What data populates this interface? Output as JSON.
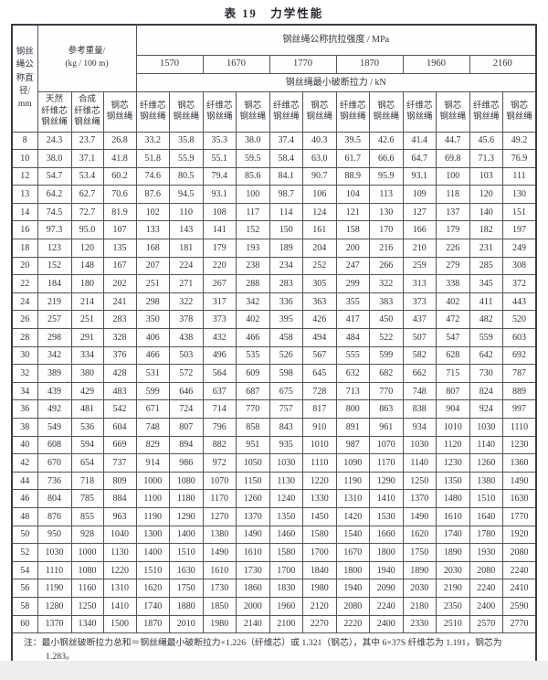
{
  "title": "表 19　力学性能",
  "table": {
    "diameter_header": "钢丝\n绳公\n称直\n径/\nmm",
    "weight_header": "参考重量/\n(kg / 100 m)",
    "strength_header": "钢丝绳公称抗拉强度 / MPa",
    "breaking_header": "钢丝绳最小破断拉力 / kN",
    "grades": [
      "1570",
      "1670",
      "1770",
      "1870",
      "1960",
      "2160"
    ],
    "weight_subheaders": [
      "天然\n纤维芯\n钢丝绳",
      "合成\n纤维芯\n钢丝绳",
      "钢芯\n钢丝绳"
    ],
    "fiber_core_label": "纤维芯\n钢丝绳",
    "steel_core_label": "钢芯\n钢丝绳",
    "rows": [
      [
        "8",
        "24.3",
        "23.7",
        "26.8",
        "33.2",
        "35.8",
        "35.3",
        "38.0",
        "37.4",
        "40.3",
        "39.5",
        "42.6",
        "41.4",
        "44.7",
        "45.6",
        "49.2"
      ],
      [
        "10",
        "38.0",
        "37.1",
        "41.8",
        "51.8",
        "55.9",
        "55.1",
        "59.5",
        "58.4",
        "63.0",
        "61.7",
        "66.6",
        "64.7",
        "69.8",
        "71.3",
        "76.9"
      ],
      [
        "12",
        "54.7",
        "53.4",
        "60.2",
        "74.6",
        "80.5",
        "79.4",
        "85.6",
        "84.1",
        "90.7",
        "88.9",
        "95.9",
        "93.1",
        "100",
        "103",
        "111"
      ],
      [
        "13",
        "64.2",
        "62.7",
        "70.6",
        "87.6",
        "94.5",
        "93.1",
        "100",
        "98.7",
        "106",
        "104",
        "113",
        "109",
        "118",
        "120",
        "130"
      ],
      [
        "14",
        "74.5",
        "72.7",
        "81.9",
        "102",
        "110",
        "108",
        "117",
        "114",
        "124",
        "121",
        "130",
        "127",
        "137",
        "140",
        "151"
      ],
      [
        "16",
        "97.3",
        "95.0",
        "107",
        "133",
        "143",
        "141",
        "152",
        "150",
        "161",
        "158",
        "170",
        "166",
        "179",
        "182",
        "197"
      ],
      [
        "18",
        "123",
        "120",
        "135",
        "168",
        "181",
        "179",
        "193",
        "189",
        "204",
        "200",
        "216",
        "210",
        "226",
        "231",
        "249"
      ],
      [
        "20",
        "152",
        "148",
        "167",
        "207",
        "224",
        "220",
        "238",
        "234",
        "252",
        "247",
        "266",
        "259",
        "279",
        "285",
        "308"
      ],
      [
        "22",
        "184",
        "180",
        "202",
        "251",
        "271",
        "267",
        "288",
        "283",
        "305",
        "299",
        "322",
        "313",
        "338",
        "345",
        "372"
      ],
      [
        "24",
        "219",
        "214",
        "241",
        "298",
        "322",
        "317",
        "342",
        "336",
        "363",
        "355",
        "383",
        "373",
        "402",
        "411",
        "443"
      ],
      [
        "26",
        "257",
        "251",
        "283",
        "350",
        "378",
        "373",
        "402",
        "395",
        "426",
        "417",
        "450",
        "437",
        "472",
        "482",
        "520"
      ],
      [
        "28",
        "298",
        "291",
        "328",
        "406",
        "438",
        "432",
        "466",
        "458",
        "494",
        "484",
        "522",
        "507",
        "547",
        "559",
        "603"
      ],
      [
        "30",
        "342",
        "334",
        "376",
        "466",
        "503",
        "496",
        "535",
        "526",
        "567",
        "555",
        "599",
        "582",
        "628",
        "642",
        "692"
      ],
      [
        "32",
        "389",
        "380",
        "428",
        "531",
        "572",
        "564",
        "609",
        "598",
        "645",
        "632",
        "682",
        "662",
        "715",
        "730",
        "787"
      ],
      [
        "34",
        "439",
        "429",
        "483",
        "599",
        "646",
        "637",
        "687",
        "675",
        "728",
        "713",
        "770",
        "748",
        "807",
        "824",
        "889"
      ],
      [
        "36",
        "492",
        "481",
        "542",
        "671",
        "724",
        "714",
        "770",
        "757",
        "817",
        "800",
        "863",
        "838",
        "904",
        "924",
        "997"
      ],
      [
        "38",
        "549",
        "536",
        "604",
        "748",
        "807",
        "796",
        "858",
        "843",
        "910",
        "891",
        "961",
        "934",
        "1010",
        "1030",
        "1110"
      ],
      [
        "40",
        "608",
        "594",
        "669",
        "829",
        "894",
        "882",
        "951",
        "935",
        "1010",
        "987",
        "1070",
        "1030",
        "1120",
        "1140",
        "1230"
      ],
      [
        "42",
        "670",
        "654",
        "737",
        "914",
        "986",
        "972",
        "1050",
        "1030",
        "1110",
        "1090",
        "1170",
        "1140",
        "1230",
        "1260",
        "1360"
      ],
      [
        "44",
        "736",
        "718",
        "809",
        "1000",
        "1080",
        "1070",
        "1150",
        "1130",
        "1220",
        "1190",
        "1290",
        "1250",
        "1350",
        "1380",
        "1490"
      ],
      [
        "46",
        "804",
        "785",
        "884",
        "1100",
        "1180",
        "1170",
        "1260",
        "1240",
        "1330",
        "1310",
        "1410",
        "1370",
        "1480",
        "1510",
        "1630"
      ],
      [
        "48",
        "876",
        "855",
        "963",
        "1190",
        "1290",
        "1270",
        "1370",
        "1350",
        "1450",
        "1420",
        "1530",
        "1490",
        "1610",
        "1640",
        "1770"
      ],
      [
        "50",
        "950",
        "928",
        "1040",
        "1300",
        "1400",
        "1380",
        "1490",
        "1460",
        "1580",
        "1540",
        "1660",
        "1620",
        "1740",
        "1780",
        "1920"
      ],
      [
        "52",
        "1030",
        "1000",
        "1130",
        "1400",
        "1510",
        "1490",
        "1610",
        "1580",
        "1700",
        "1670",
        "1800",
        "1750",
        "1890",
        "1930",
        "2080"
      ],
      [
        "54",
        "1110",
        "1080",
        "1220",
        "1510",
        "1630",
        "1610",
        "1730",
        "1700",
        "1840",
        "1800",
        "1940",
        "1890",
        "2030",
        "2080",
        "2240"
      ],
      [
        "56",
        "1190",
        "1160",
        "1310",
        "1620",
        "1750",
        "1730",
        "1860",
        "1830",
        "1980",
        "1940",
        "2090",
        "2030",
        "2190",
        "2240",
        "2410"
      ],
      [
        "58",
        "1280",
        "1250",
        "1410",
        "1740",
        "1880",
        "1850",
        "2000",
        "1960",
        "2120",
        "2080",
        "2240",
        "2180",
        "2350",
        "2400",
        "2590"
      ],
      [
        "60",
        "1370",
        "1340",
        "1500",
        "1870",
        "2010",
        "1980",
        "2140",
        "2100",
        "2270",
        "2220",
        "2400",
        "2330",
        "2510",
        "2570",
        "2770"
      ]
    ]
  },
  "note": {
    "text": "注：最小钢丝破断拉力总和＝钢丝绳最小破断拉力×1.226（纤维芯）或 1.321（钢芯），其中 6×37S 纤维芯为 1.191，钢芯为 1.283。"
  }
}
